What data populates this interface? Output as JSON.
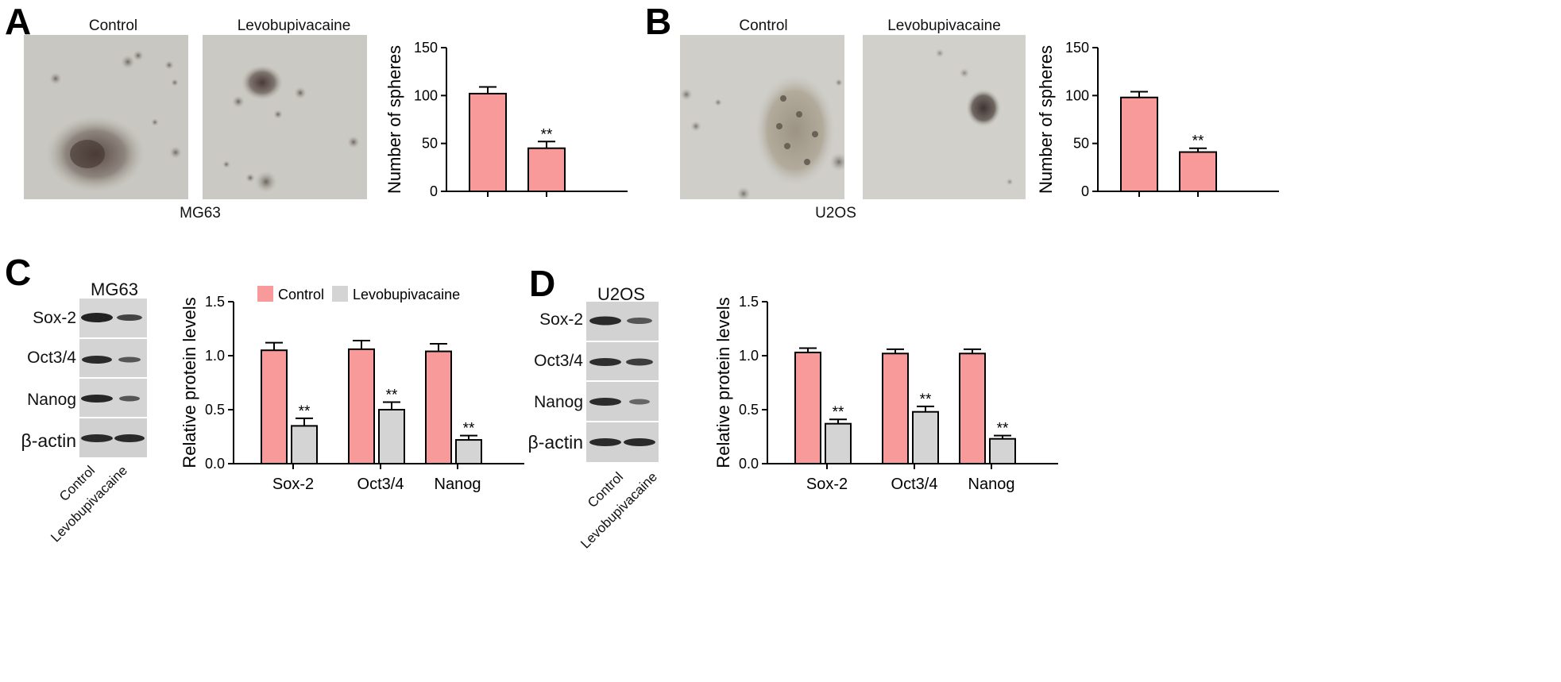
{
  "panels": {
    "A": {
      "letter": "A",
      "img_left": "Control",
      "img_right": "Levobupivacaine",
      "cell_line": "MG63"
    },
    "B": {
      "letter": "B",
      "img_left": "Control",
      "img_right": "Levobupivacaine",
      "cell_line": "U2OS"
    },
    "C": {
      "letter": "C",
      "blot_title": "MG63",
      "rows": [
        "Sox-2",
        "Oct3/4",
        "Nanog",
        "β-actin"
      ],
      "lanes": [
        "Control",
        "Levobupivacaine"
      ]
    },
    "D": {
      "letter": "D",
      "blot_title": "U2OS",
      "rows": [
        "Sox-2",
        "Oct3/4",
        "Nanog",
        "β-actin"
      ],
      "lanes": [
        "Control",
        "Levobupivacaine"
      ]
    }
  },
  "colors": {
    "control": "#f99a9a",
    "levobupivacaine": "#d4d4d4",
    "micro_bg": "#c9c8c3"
  },
  "chart_data": [
    {
      "id": "A",
      "type": "bar",
      "categories": [
        "Control",
        "Levobupivacaine"
      ],
      "values": [
        102,
        45
      ],
      "errors": [
        7,
        7
      ],
      "significance": [
        "",
        "**"
      ],
      "ylabel": "Number of spheres",
      "ylim": [
        0,
        150
      ],
      "yticks": [
        "0",
        "50",
        "100",
        "150"
      ]
    },
    {
      "id": "B",
      "type": "bar",
      "categories": [
        "Control",
        "Levobupivacaine"
      ],
      "values": [
        98,
        41
      ],
      "errors": [
        6,
        4
      ],
      "significance": [
        "",
        "**"
      ],
      "ylabel": "Number of spheres",
      "ylim": [
        0,
        150
      ],
      "yticks": [
        "0",
        "50",
        "100",
        "150"
      ]
    },
    {
      "id": "C",
      "type": "bar",
      "categories": [
        "Sox-2",
        "Oct3/4",
        "Nanog"
      ],
      "series": [
        {
          "name": "Control",
          "values": [
            1.05,
            1.06,
            1.04
          ],
          "errors": [
            0.07,
            0.08,
            0.07
          ]
        },
        {
          "name": "Levobupivacaine",
          "values": [
            0.35,
            0.5,
            0.22
          ],
          "errors": [
            0.07,
            0.07,
            0.04
          ]
        }
      ],
      "significance": [
        "**",
        "**",
        "**"
      ],
      "ylabel": "Relative protein levels",
      "ylim": [
        0,
        1.5
      ],
      "yticks": [
        "0.0",
        "0.5",
        "1.0",
        "1.5"
      ],
      "legend": "top"
    },
    {
      "id": "D",
      "type": "bar",
      "categories": [
        "Sox-2",
        "Oct3/4",
        "Nanog"
      ],
      "series": [
        {
          "name": "Control",
          "values": [
            1.03,
            1.02,
            1.02
          ],
          "errors": [
            0.04,
            0.04,
            0.04
          ]
        },
        {
          "name": "Levobupivacaine",
          "values": [
            0.37,
            0.48,
            0.23
          ],
          "errors": [
            0.04,
            0.05,
            0.03
          ]
        }
      ],
      "significance": [
        "**",
        "**",
        "**"
      ],
      "ylabel": "Relative protein levels",
      "ylim": [
        0,
        1.5
      ],
      "yticks": [
        "0.0",
        "0.5",
        "1.0",
        "1.5"
      ]
    }
  ]
}
